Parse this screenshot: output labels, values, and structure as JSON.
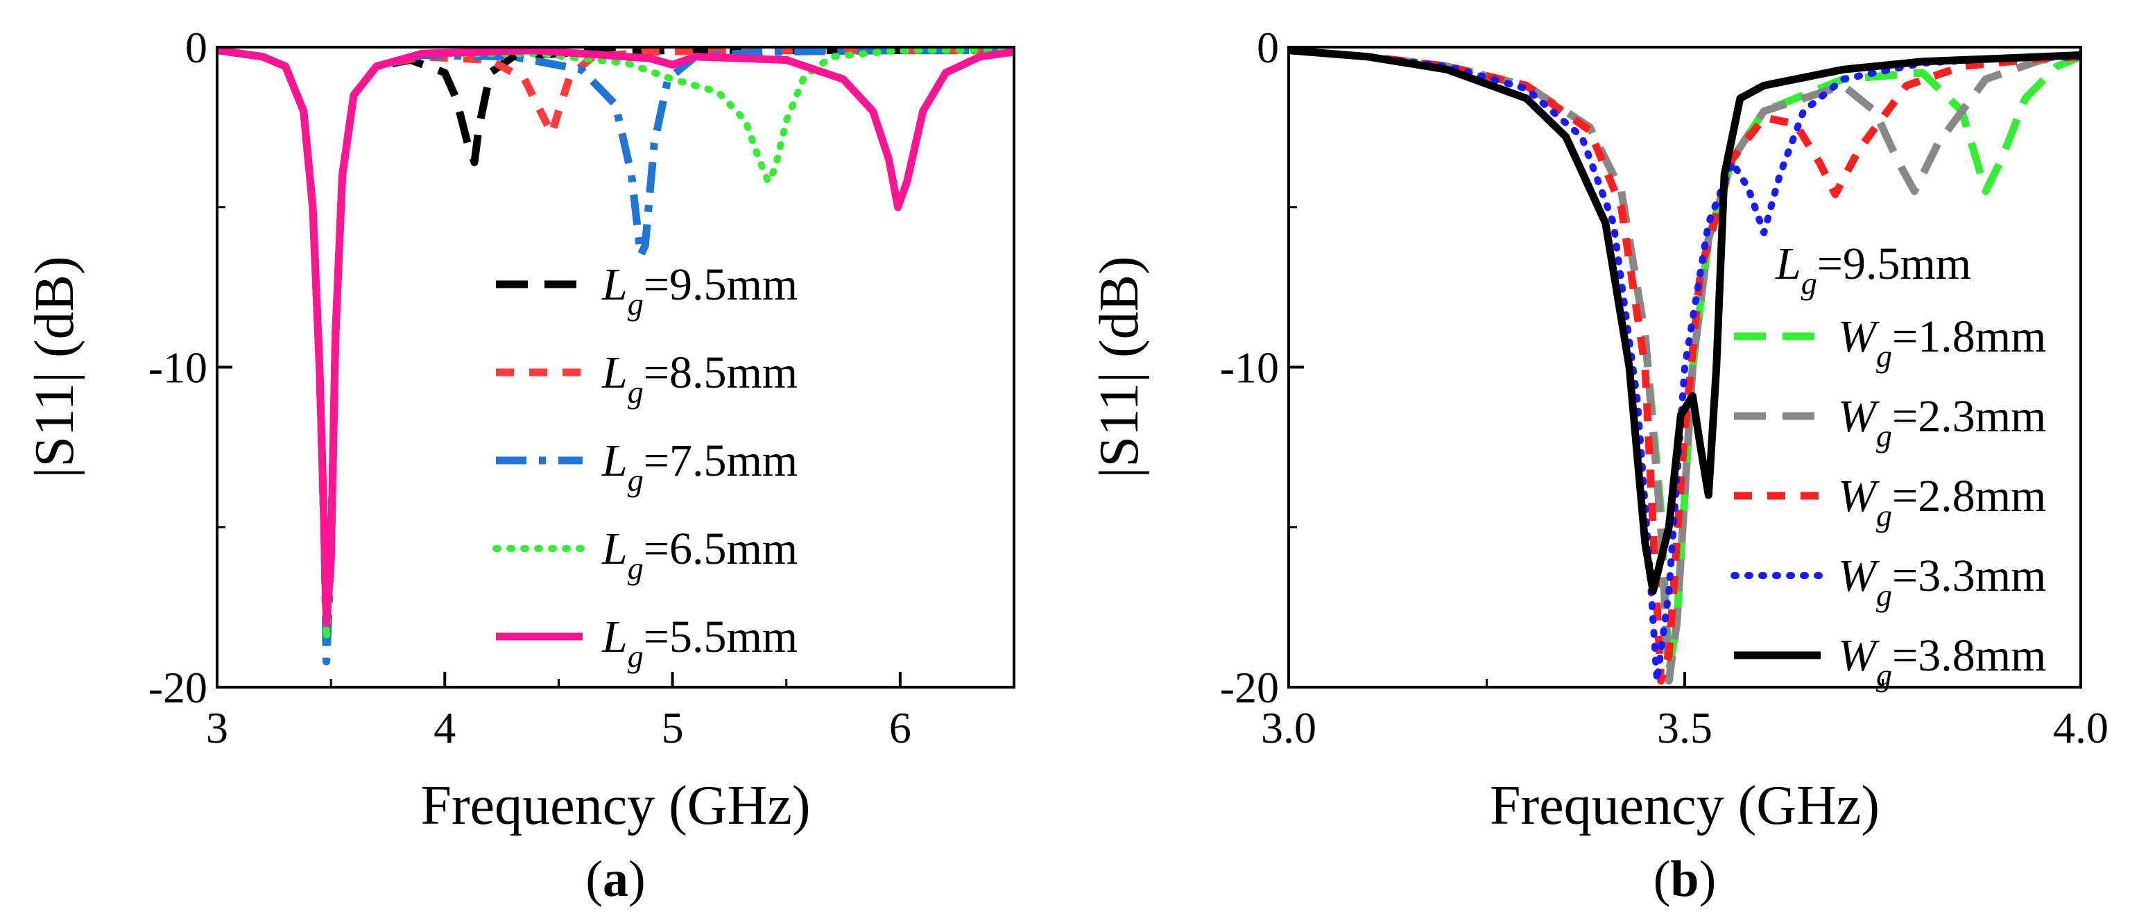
{
  "chart_data": [
    {
      "type": "line",
      "panel_label": "(a)",
      "panel_letter": "a",
      "xlabel": "Frequency (GHz)",
      "ylabel": "|S11| (dB)",
      "xlim": [
        3,
        6.5
      ],
      "ylim": [
        -20,
        0
      ],
      "xticks": [
        3,
        4,
        5,
        6
      ],
      "xtick_labels": [
        "3",
        "4",
        "5",
        "6"
      ],
      "yticks": [
        0,
        -10,
        -20
      ],
      "ytick_labels": [
        "0",
        "-10",
        "-20"
      ],
      "legend_placement": "right-center",
      "series": [
        {
          "name": "Lg=9.5mm",
          "var": "L",
          "sub": "g",
          "value": "=9.5mm",
          "color": "#000000",
          "style": "longdash",
          "x": [
            3.0,
            3.2,
            3.3,
            3.38,
            3.42,
            3.45,
            3.47,
            3.48,
            3.5,
            3.52,
            3.55,
            3.6,
            3.7,
            3.85,
            4.0,
            4.05,
            4.1,
            4.13,
            4.15,
            4.2,
            4.3,
            4.6,
            5.0,
            5.5,
            6.0,
            6.5
          ],
          "y": [
            -0.1,
            -0.3,
            -0.6,
            -2.0,
            -5.0,
            -10.0,
            -15.0,
            -18.0,
            -16.0,
            -9.0,
            -4.0,
            -1.5,
            -0.6,
            -0.4,
            -0.8,
            -1.6,
            -3.0,
            -3.6,
            -2.5,
            -0.8,
            -0.3,
            -0.15,
            -0.1,
            -0.1,
            -0.1,
            -0.1
          ]
        },
        {
          "name": "Lg=8.5mm",
          "var": "L",
          "sub": "g",
          "value": "=8.5mm",
          "color": "#ff3b3b",
          "style": "dash",
          "x": [
            3.0,
            3.2,
            3.3,
            3.38,
            3.42,
            3.45,
            3.47,
            3.48,
            3.5,
            3.52,
            3.55,
            3.6,
            3.7,
            3.9,
            4.2,
            4.35,
            4.42,
            4.47,
            4.5,
            4.55,
            4.65,
            4.9,
            5.3,
            6.0,
            6.5
          ],
          "y": [
            -0.1,
            -0.3,
            -0.6,
            -2.0,
            -5.0,
            -10.0,
            -15.0,
            -18.2,
            -16.0,
            -9.0,
            -4.0,
            -1.5,
            -0.6,
            -0.3,
            -0.4,
            -1.0,
            -2.0,
            -2.7,
            -2.0,
            -0.9,
            -0.3,
            -0.15,
            -0.1,
            -0.1,
            -0.1
          ]
        },
        {
          "name": "Lg=7.5mm",
          "var": "L",
          "sub": "g",
          "value": "=7.5mm",
          "color": "#1f75d6",
          "style": "dashdot",
          "x": [
            3.0,
            3.2,
            3.3,
            3.38,
            3.42,
            3.45,
            3.47,
            3.48,
            3.5,
            3.52,
            3.55,
            3.6,
            3.7,
            3.9,
            4.3,
            4.6,
            4.75,
            4.82,
            4.86,
            4.88,
            4.92,
            4.98,
            5.1,
            5.4,
            6.0,
            6.5
          ],
          "y": [
            -0.1,
            -0.3,
            -0.6,
            -2.0,
            -5.0,
            -10.0,
            -15.0,
            -19.2,
            -16.0,
            -9.0,
            -4.0,
            -1.5,
            -0.6,
            -0.25,
            -0.3,
            -0.7,
            -1.8,
            -4.0,
            -6.5,
            -6.2,
            -3.0,
            -1.0,
            -0.3,
            -0.15,
            -0.1,
            -0.1
          ]
        },
        {
          "name": "Lg=6.5mm",
          "var": "L",
          "sub": "g",
          "value": "=6.5mm",
          "color": "#33ee33",
          "style": "dot",
          "x": [
            3.0,
            3.2,
            3.3,
            3.38,
            3.42,
            3.45,
            3.47,
            3.48,
            3.5,
            3.52,
            3.55,
            3.6,
            3.7,
            3.9,
            4.4,
            4.8,
            5.0,
            5.2,
            5.32,
            5.38,
            5.42,
            5.45,
            5.5,
            5.58,
            5.7,
            6.0,
            6.5
          ],
          "y": [
            -0.1,
            -0.3,
            -0.6,
            -2.0,
            -5.0,
            -10.0,
            -15.0,
            -18.5,
            -16.0,
            -9.0,
            -4.0,
            -1.5,
            -0.6,
            -0.2,
            -0.2,
            -0.5,
            -1.0,
            -1.4,
            -2.3,
            -3.5,
            -4.2,
            -3.8,
            -2.3,
            -0.9,
            -0.3,
            -0.1,
            -0.1
          ]
        },
        {
          "name": "Lg=5.5mm",
          "var": "L",
          "sub": "g",
          "value": "=5.5mm",
          "color": "#ff1493",
          "style": "solid",
          "x": [
            3.0,
            3.2,
            3.3,
            3.38,
            3.42,
            3.45,
            3.47,
            3.48,
            3.5,
            3.52,
            3.55,
            3.6,
            3.7,
            3.9,
            4.4,
            4.9,
            5.0,
            5.1,
            5.5,
            5.75,
            5.88,
            5.95,
            5.99,
            6.03,
            6.1,
            6.2,
            6.35,
            6.5
          ],
          "y": [
            -0.1,
            -0.3,
            -0.6,
            -2.0,
            -5.0,
            -10.0,
            -15.0,
            -18.0,
            -16.0,
            -9.0,
            -4.0,
            -1.5,
            -0.6,
            -0.2,
            -0.1,
            -0.35,
            -0.55,
            -0.3,
            -0.4,
            -1.0,
            -2.0,
            -3.5,
            -5.0,
            -4.2,
            -2.0,
            -0.8,
            -0.3,
            -0.15
          ]
        }
      ]
    },
    {
      "type": "line",
      "panel_label": "(b)",
      "panel_letter": "b",
      "xlabel": "Frequency (GHz)",
      "ylabel": "|S11| (dB)",
      "xlim": [
        3.0,
        4.0
      ],
      "ylim": [
        -20,
        0
      ],
      "xticks": [
        3.0,
        3.5,
        4.0
      ],
      "xtick_labels": [
        "3.0",
        "3.5",
        "4.0"
      ],
      "yticks": [
        0,
        -10,
        -20
      ],
      "ytick_labels": [
        "0",
        "-10",
        "-20"
      ],
      "legend_placement": "right-center",
      "legend_title": {
        "var": "L",
        "sub": "g",
        "value": "=9.5mm"
      },
      "series": [
        {
          "name": "Wg=1.8mm",
          "var": "W",
          "sub": "g",
          "value": "=1.8mm",
          "color": "#33ee33",
          "style": "longdash",
          "x": [
            3.0,
            3.1,
            3.2,
            3.3,
            3.38,
            3.42,
            3.45,
            3.47,
            3.48,
            3.49,
            3.51,
            3.53,
            3.56,
            3.6,
            3.7,
            3.8,
            3.85,
            3.88,
            3.9,
            3.93,
            3.97,
            4.0
          ],
          "y": [
            -0.1,
            -0.3,
            -0.6,
            -1.2,
            -2.5,
            -4.5,
            -9.0,
            -14.5,
            -19.5,
            -18.0,
            -10.0,
            -6.0,
            -3.5,
            -2.0,
            -1.0,
            -0.8,
            -2.0,
            -4.5,
            -3.5,
            -1.6,
            -0.6,
            -0.3
          ]
        },
        {
          "name": "Wg=2.3mm",
          "var": "W",
          "sub": "g",
          "value": "=2.3mm",
          "color": "#888888",
          "style": "longdash",
          "x": [
            3.0,
            3.1,
            3.2,
            3.3,
            3.38,
            3.42,
            3.45,
            3.47,
            3.48,
            3.49,
            3.51,
            3.53,
            3.56,
            3.6,
            3.7,
            3.74,
            3.77,
            3.79,
            3.82,
            3.88,
            3.95,
            4.0
          ],
          "y": [
            -0.1,
            -0.3,
            -0.6,
            -1.2,
            -2.5,
            -4.5,
            -9.0,
            -15.0,
            -19.8,
            -18.0,
            -10.0,
            -6.0,
            -3.5,
            -2.0,
            -1.2,
            -2.0,
            -3.6,
            -4.5,
            -3.0,
            -1.0,
            -0.4,
            -0.3
          ]
        },
        {
          "name": "Wg=2.8mm",
          "var": "W",
          "sub": "g",
          "value": "=2.8mm",
          "color": "#ff1f1f",
          "style": "dash",
          "x": [
            3.0,
            3.1,
            3.2,
            3.3,
            3.38,
            3.42,
            3.45,
            3.46,
            3.47,
            3.48,
            3.5,
            3.52,
            3.56,
            3.6,
            3.64,
            3.67,
            3.69,
            3.72,
            3.78,
            3.85,
            3.95,
            4.0
          ],
          "y": [
            -0.1,
            -0.3,
            -0.6,
            -1.2,
            -2.6,
            -5.0,
            -10.0,
            -15.0,
            -19.8,
            -19.0,
            -12.0,
            -7.0,
            -3.5,
            -2.2,
            -2.4,
            -3.6,
            -4.6,
            -3.2,
            -1.2,
            -0.6,
            -0.35,
            -0.3
          ]
        },
        {
          "name": "Wg=3.3mm",
          "var": "W",
          "sub": "g",
          "value": "=3.3mm",
          "color": "#1a1aff",
          "style": "dot",
          "x": [
            3.0,
            3.1,
            3.2,
            3.3,
            3.37,
            3.41,
            3.44,
            3.455,
            3.465,
            3.48,
            3.5,
            3.53,
            3.56,
            3.58,
            3.6,
            3.62,
            3.65,
            3.7,
            3.8,
            3.9,
            4.0
          ],
          "y": [
            -0.1,
            -0.3,
            -0.6,
            -1.3,
            -2.8,
            -5.5,
            -11.0,
            -16.0,
            -19.8,
            -17.0,
            -10.0,
            -5.5,
            -3.6,
            -4.4,
            -5.8,
            -4.0,
            -2.0,
            -1.0,
            -0.5,
            -0.35,
            -0.3
          ]
        },
        {
          "name": "Wg=3.8mm",
          "var": "W",
          "sub": "g",
          "value": "=3.8mm",
          "color": "#000000",
          "style": "solid",
          "x": [
            3.0,
            3.1,
            3.2,
            3.3,
            3.35,
            3.4,
            3.43,
            3.45,
            3.46,
            3.48,
            3.495,
            3.51,
            3.52,
            3.53,
            3.54,
            3.55,
            3.57,
            3.6,
            3.7,
            3.8,
            3.9,
            4.0
          ],
          "y": [
            -0.1,
            -0.3,
            -0.7,
            -1.6,
            -2.8,
            -5.5,
            -10.0,
            -15.5,
            -17.0,
            -15.0,
            -11.5,
            -10.9,
            -12.5,
            -14.0,
            -10.0,
            -4.0,
            -1.6,
            -1.2,
            -0.7,
            -0.45,
            -0.35,
            -0.25
          ]
        }
      ]
    }
  ]
}
